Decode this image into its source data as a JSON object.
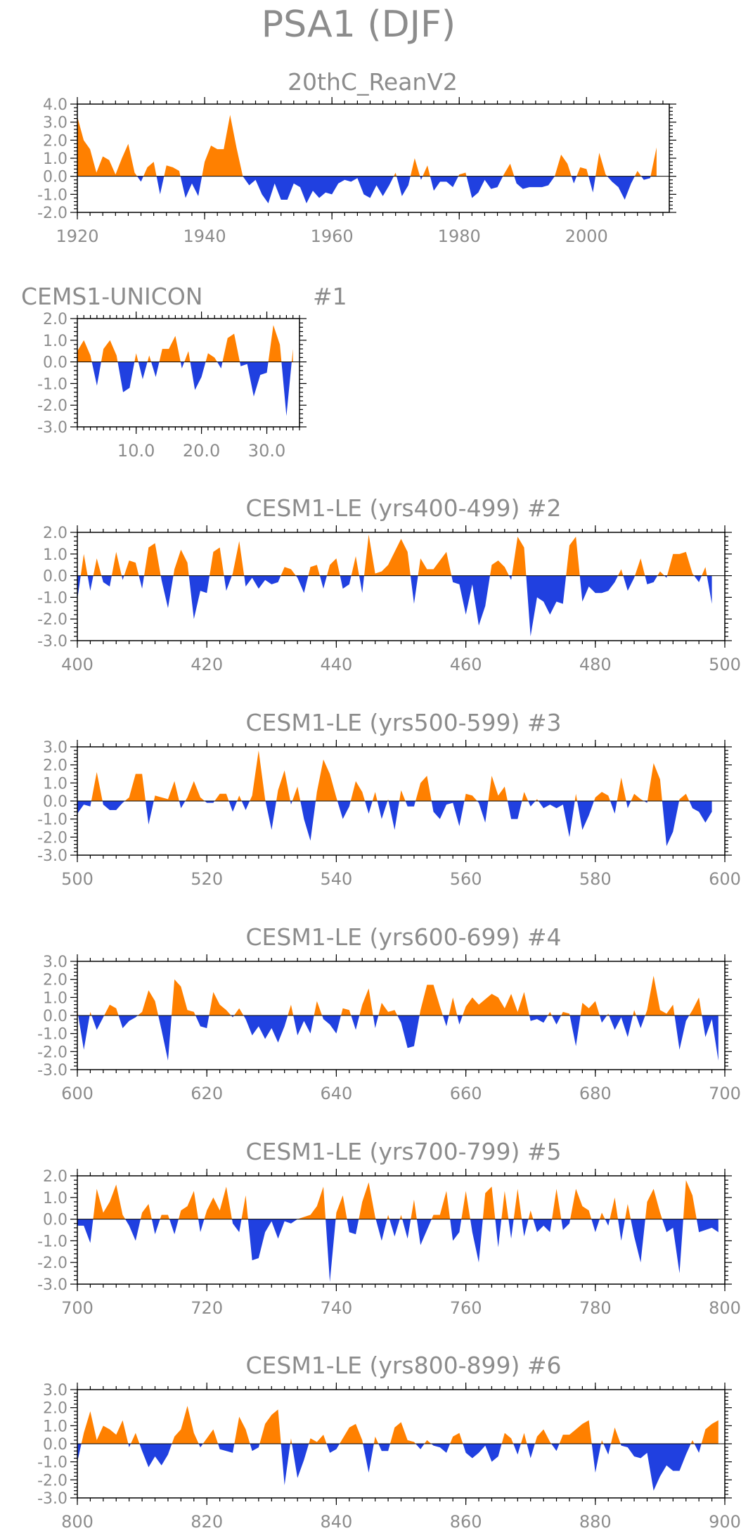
{
  "figure": {
    "title": "PSA1 (DJF)"
  },
  "colors": {
    "positive": "#ff8000",
    "negative": "#2040e0",
    "text": "#8c8c8c"
  },
  "chart_data": [
    {
      "id": "p0",
      "type": "area",
      "title": "20thC_ReanV2",
      "label": "",
      "x_start": 1920,
      "xlim": [
        1920,
        2013
      ],
      "ylim": [
        -2,
        4
      ],
      "xticks": [
        "1920",
        "1940",
        "1960",
        "1980",
        "2000"
      ],
      "xtick_values": [
        1920,
        1940,
        1960,
        1980,
        2000
      ],
      "yticks": [
        "4.0",
        "3.0",
        "2.0",
        "1.0",
        "0.0",
        "-1.0",
        "-2.0"
      ],
      "ytick_values": [
        4,
        3,
        2,
        1,
        0,
        -1,
        -2
      ],
      "values": [
        3.3,
        2.0,
        1.5,
        0.2,
        1.1,
        0.9,
        0.1,
        1.0,
        1.8,
        0.2,
        -0.3,
        0.5,
        0.8,
        -1.0,
        0.6,
        0.5,
        0.3,
        -1.2,
        -0.4,
        -1.1,
        0.8,
        1.7,
        1.5,
        1.5,
        3.4,
        1.6,
        0,
        -0.5,
        -0.2,
        -1.0,
        -1.5,
        -0.4,
        -1.3,
        -1.3,
        -0.4,
        -0.6,
        -1.5,
        -0.8,
        -1.2,
        -0.9,
        -1.0,
        -0.4,
        -0.2,
        -0.3,
        -0.1,
        -1.0,
        -1.2,
        -0.5,
        -1.1,
        -0.5,
        0.2,
        -1.1,
        -0.5,
        1.0,
        -0.2,
        0.6,
        -0.8,
        -0.3,
        -0.3,
        -0.6,
        0.1,
        0.2,
        -1.2,
        -0.9,
        -0.2,
        -0.7,
        -0.6,
        0.1,
        0.7,
        -0.4,
        -0.7,
        -0.6,
        -0.6,
        -0.6,
        -0.5,
        0.0,
        1.2,
        0.7,
        -0.4,
        0.5,
        0.4,
        -0.9,
        1.3,
        0.1,
        -0.3,
        -0.6,
        -1.3,
        -0.4,
        0.3,
        -0.2,
        -0.1,
        1.6
      ]
    },
    {
      "id": "p1",
      "type": "area",
      "title": "CEMS1-UNICON",
      "label": "#1",
      "x_start": 1,
      "xlim": [
        1,
        35
      ],
      "ylim": [
        -3,
        2
      ],
      "xticks": [
        "10.0",
        "20.0",
        "30.0"
      ],
      "xtick_values": [
        10,
        20,
        30
      ],
      "yticks": [
        "2.0",
        "1.0",
        "0.0",
        "-1.0",
        "-2.0",
        "-3.0"
      ],
      "ytick_values": [
        2,
        1,
        0,
        -1,
        -2,
        -3
      ],
      "values": [
        0.5,
        1.0,
        0.3,
        -1.1,
        0.6,
        1.0,
        0.3,
        -1.4,
        -1.2,
        0.4,
        -0.8,
        0.3,
        -0.7,
        0.6,
        0.6,
        1.2,
        -0.3,
        0.5,
        -1.3,
        -0.7,
        0.4,
        0.2,
        -0.3,
        1.1,
        1.3,
        -0.2,
        -0.1,
        -1.6,
        -0.6,
        -0.5,
        1.7,
        0.8,
        -2.5,
        0.6
      ]
    },
    {
      "id": "p2",
      "type": "area",
      "title": "CESM1-LE (yrs400-499) #2",
      "label": "",
      "x_start": 400,
      "xlim": [
        400,
        500
      ],
      "ylim": [
        -3,
        2
      ],
      "xticks": [
        "400",
        "420",
        "440",
        "460",
        "480",
        "500"
      ],
      "xtick_values": [
        400,
        420,
        440,
        460,
        480,
        500
      ],
      "yticks": [
        "2.0",
        "1.0",
        "0.0",
        "-1.0",
        "-2.0",
        "-3.0"
      ],
      "ytick_values": [
        2,
        1,
        0,
        -1,
        -2,
        -3
      ],
      "values": [
        -1.1,
        1.0,
        -0.7,
        0.8,
        -0.3,
        -0.5,
        1.1,
        -0.2,
        0.7,
        0.6,
        -0.6,
        1.3,
        1.5,
        -0.2,
        -1.5,
        0.3,
        1.2,
        0.6,
        -2.0,
        -0.7,
        -0.8,
        1.1,
        1.3,
        -0.7,
        0.1,
        1.6,
        -0.5,
        -0.1,
        -0.6,
        -0.2,
        -0.4,
        -0.3,
        0.4,
        0.3,
        -0.1,
        -0.8,
        0.4,
        0.5,
        -0.6,
        0.5,
        0.8,
        -0.6,
        -0.4,
        0.9,
        -0.8,
        1.9,
        0.1,
        0.2,
        0.5,
        1.1,
        1.7,
        1.1,
        -1.3,
        0.8,
        0.3,
        0.3,
        0.7,
        1.1,
        -0.3,
        -0.4,
        -1.8,
        -0.4,
        -2.3,
        -1.4,
        0.5,
        0.7,
        0.4,
        -0.2,
        1.8,
        1.3,
        -2.8,
        -1.0,
        -1.2,
        -1.8,
        -1.2,
        -1.3,
        1.4,
        1.8,
        -1.2,
        -0.5,
        -0.8,
        -0.8,
        -0.7,
        -0.3,
        0.3,
        -0.7,
        -0.1,
        0.8,
        -0.4,
        -0.3,
        0.2,
        -0.1,
        1.0,
        1.0,
        1.1,
        0.1,
        -0.3,
        0.4,
        -1.3
      ]
    },
    {
      "id": "p3",
      "type": "area",
      "title": "CESM1-LE (yrs500-599) #3",
      "label": "",
      "x_start": 500,
      "xlim": [
        500,
        600
      ],
      "ylim": [
        -3,
        3
      ],
      "xticks": [
        "500",
        "520",
        "540",
        "560",
        "580",
        "600"
      ],
      "xtick_values": [
        500,
        520,
        540,
        560,
        580,
        600
      ],
      "yticks": [
        "3.0",
        "2.0",
        "1.0",
        "0.0",
        "-1.0",
        "-2.0",
        "-3.0"
      ],
      "ytick_values": [
        3,
        2,
        1,
        0,
        -1,
        -2,
        -3
      ],
      "values": [
        -0.7,
        -0.2,
        -0.3,
        1.6,
        -0.2,
        -0.5,
        -0.5,
        -0.1,
        0.2,
        1.5,
        1.5,
        -1.3,
        0.3,
        0.2,
        0.1,
        1.1,
        -0.4,
        0.2,
        1.1,
        0.2,
        -0.1,
        -0.1,
        0.4,
        0.4,
        -0.6,
        0.3,
        -0.5,
        0.3,
        2.8,
        0.1,
        -1.6,
        0.6,
        1.7,
        -0.2,
        0.8,
        -1.0,
        -2.2,
        0.5,
        2.3,
        1.5,
        0.2,
        -1.0,
        -0.3,
        1.1,
        0.5,
        -0.7,
        0.5,
        -1.0,
        0.1,
        -1.6,
        0.6,
        -0.3,
        -0.3,
        1.0,
        1.4,
        -0.6,
        -1.0,
        -0.2,
        -0.1,
        -1.4,
        0.4,
        0.3,
        -0.1,
        -1.2,
        1.4,
        0.3,
        0.8,
        -1.0,
        -1.0,
        0.5,
        -0.3,
        0.1,
        -0.4,
        -0.2,
        -0.4,
        -0.2,
        -2.0,
        0.4,
        -1.6,
        -0.8,
        0.2,
        0.5,
        0.3,
        -0.7,
        1.3,
        -0.4,
        0.4,
        0.1,
        -0.1,
        2.1,
        1.2,
        -2.5,
        -1.7,
        0.1,
        0.4,
        -0.4,
        -0.6,
        -1.2,
        -0.6
      ]
    },
    {
      "id": "p4",
      "type": "area",
      "title": "CESM1-LE (yrs600-699) #4",
      "label": "",
      "x_start": 600,
      "xlim": [
        600,
        700
      ],
      "ylim": [
        -3,
        3
      ],
      "xticks": [
        "600",
        "620",
        "640",
        "660",
        "680",
        "700"
      ],
      "xtick_values": [
        600,
        620,
        640,
        660,
        680,
        700
      ],
      "yticks": [
        "3.0",
        "2.0",
        "1.0",
        "0.0",
        "-1.0",
        "-2.0",
        "-3.0"
      ],
      "ytick_values": [
        3,
        2,
        1,
        0,
        -1,
        -2,
        -3
      ],
      "values": [
        0.3,
        -1.9,
        0.2,
        -0.8,
        -0.1,
        0.6,
        0.4,
        -0.7,
        -0.3,
        -0.1,
        0.2,
        1.4,
        0.8,
        -0.8,
        -2.5,
        2.0,
        1.6,
        0.3,
        0.2,
        -0.6,
        -0.7,
        1.3,
        0.6,
        0.3,
        -0.1,
        0.4,
        -0.2,
        -1.1,
        -0.6,
        -1.3,
        -0.7,
        -1.5,
        -0.6,
        0.6,
        -1.1,
        -0.3,
        -1.0,
        0.8,
        -0.2,
        -0.5,
        -1.0,
        0.4,
        0.3,
        -0.8,
        0.6,
        1.5,
        -0.7,
        0.7,
        0.2,
        0.3,
        -0.4,
        -1.8,
        -1.7,
        0.3,
        1.7,
        1.7,
        0.5,
        -0.6,
        1.0,
        -0.5,
        0.5,
        1.0,
        0.6,
        0.9,
        1.2,
        1.0,
        0.4,
        1.2,
        0.2,
        1.3,
        -0.3,
        -0.2,
        -0.4,
        0.2,
        -0.5,
        0.2,
        0.1,
        -1.7,
        0.7,
        0.4,
        0.8,
        -0.4,
        0.1,
        -0.8,
        -0.1,
        -1.2,
        0.3,
        -0.7,
        0.3,
        2.2,
        0.3,
        0.1,
        0.6,
        -1.9,
        -0.3,
        0.3,
        1.0,
        -1.2,
        -0.2,
        -2.5
      ]
    },
    {
      "id": "p5",
      "type": "area",
      "title": "CESM1-LE (yrs700-799) #5",
      "label": "",
      "x_start": 700,
      "xlim": [
        700,
        800
      ],
      "ylim": [
        -3,
        2
      ],
      "xticks": [
        "700",
        "720",
        "740",
        "760",
        "780",
        "800"
      ],
      "xtick_values": [
        700,
        720,
        740,
        760,
        780,
        800
      ],
      "yticks": [
        "2.0",
        "1.0",
        "0.0",
        "-1.0",
        "-2.0",
        "-3.0"
      ],
      "ytick_values": [
        2,
        1,
        0,
        -1,
        -2,
        -3
      ],
      "values": [
        -0.3,
        -0.3,
        -1.1,
        1.4,
        0.3,
        0.8,
        1.6,
        0.2,
        -0.3,
        -1.0,
        0.3,
        0.7,
        -0.7,
        0.2,
        0.2,
        -0.7,
        0.4,
        0.6,
        1.3,
        -0.6,
        0.4,
        1.0,
        0.4,
        1.5,
        -0.2,
        -0.6,
        1.1,
        -1.9,
        -1.8,
        -0.6,
        -0.1,
        -0.9,
        -0.1,
        -0.2,
        0,
        0.1,
        0.2,
        0.6,
        1.5,
        -2.9,
        0.3,
        1.1,
        -0.6,
        -0.7,
        0.8,
        1.7,
        0.1,
        -1.0,
        0.2,
        -0.8,
        0.2,
        -0.9,
        0.9,
        -1.2,
        -0.5,
        0.2,
        0.2,
        1.3,
        -1.0,
        -0.6,
        1.3,
        -0.6,
        -2.0,
        1.2,
        1.5,
        -1.3,
        1.3,
        -0.9,
        1.4,
        -0.8,
        0.4,
        -0.6,
        -0.3,
        -0.6,
        1.4,
        -0.5,
        -0.2,
        1.4,
        0.6,
        0.4,
        -0.6,
        0.3,
        -0.3,
        1.0,
        -1.0,
        0.7,
        -0.8,
        -2.0,
        0.8,
        1.4,
        0.3,
        -0.6,
        -0.4,
        -2.5,
        1.8,
        1.1,
        -0.6,
        -0.5,
        -0.4,
        -0.6
      ]
    },
    {
      "id": "p6",
      "type": "area",
      "title": "CESM1-LE (yrs800-899) #6",
      "label": "",
      "x_start": 800,
      "xlim": [
        800,
        900
      ],
      "ylim": [
        -3,
        3
      ],
      "xticks": [
        "800",
        "820",
        "840",
        "860",
        "880",
        "900"
      ],
      "xtick_values": [
        800,
        820,
        840,
        860,
        880,
        900
      ],
      "yticks": [
        "3.0",
        "2.0",
        "1.0",
        "0.0",
        "-1.0",
        "-2.0",
        "-3.0"
      ],
      "ytick_values": [
        3,
        2,
        1,
        0,
        -1,
        -2,
        -3
      ],
      "values": [
        -1.0,
        0.6,
        1.8,
        0.2,
        1.0,
        0.8,
        0.5,
        1.3,
        -0.2,
        0.6,
        -0.4,
        -1.3,
        -0.7,
        -1.2,
        -0.6,
        0.4,
        0.8,
        2.1,
        0.6,
        -0.2,
        0.3,
        0.8,
        -0.3,
        -0.4,
        -0.5,
        1.5,
        0.8,
        -0.4,
        -0.2,
        1.1,
        1.6,
        1.9,
        -2.3,
        0.3,
        -1.9,
        -0.9,
        0.3,
        0.1,
        0.5,
        -0.5,
        -0.3,
        0.3,
        0.9,
        1.1,
        0.2,
        -1.6,
        0.4,
        -0.4,
        -0.4,
        0.9,
        1.2,
        0.2,
        0.1,
        -0.3,
        0.2,
        -0.1,
        -0.2,
        -0.5,
        0.4,
        0.6,
        -0.5,
        -0.8,
        -0.5,
        -0.1,
        -1.0,
        -0.7,
        0.6,
        0.3,
        -0.6,
        0.6,
        -0.8,
        0.4,
        0.8,
        0.1,
        -0.4,
        0.5,
        0.5,
        0.8,
        1.1,
        1.3,
        -1.6,
        0.2,
        -0.6,
        0.9,
        -0.1,
        -0.2,
        -0.7,
        -0.8,
        -0.5,
        -2.6,
        -1.8,
        -1.2,
        -1.5,
        -1.5,
        -0.6,
        0.2,
        -0.5,
        0.8,
        1.1,
        1.3
      ]
    }
  ]
}
